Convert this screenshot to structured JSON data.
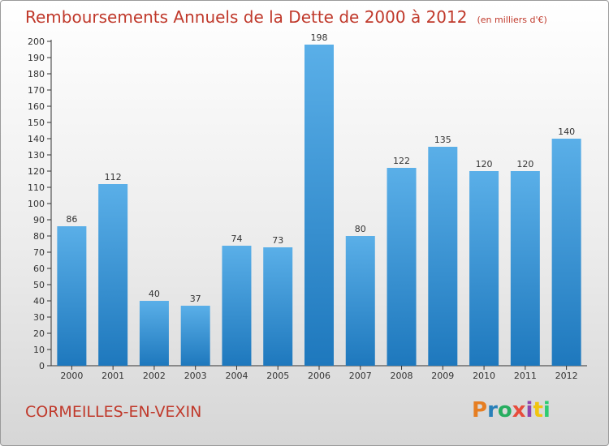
{
  "header": {
    "title": "Remboursements Annuels de la Dette de 2000 à 2012",
    "subtitle": "(en milliers d'€)"
  },
  "footer": {
    "commune": "CORMEILLES-EN-VEXIN",
    "brand": "Proxiti"
  },
  "colors": {
    "title": "#c0392b",
    "bar_light": "#5aafe8",
    "bar_dark": "#1e78bd",
    "brand": [
      "#e67e22",
      "#2980b9",
      "#27ae60",
      "#e74c3c",
      "#8e44ad",
      "#f1c40f",
      "#2ecc71"
    ]
  },
  "chart_data": {
    "type": "bar",
    "title": "Remboursements Annuels de la Dette de 2000 à 2012",
    "subtitle": "(en milliers d'€)",
    "categories": [
      "2000",
      "2001",
      "2002",
      "2003",
      "2004",
      "2005",
      "2006",
      "2007",
      "2008",
      "2009",
      "2010",
      "2011",
      "2012"
    ],
    "values": [
      86,
      112,
      40,
      37,
      74,
      73,
      198,
      80,
      122,
      135,
      120,
      120,
      140
    ],
    "ylim": [
      0,
      200
    ],
    "ytick_step": 10,
    "grid": false,
    "legend": "none"
  }
}
